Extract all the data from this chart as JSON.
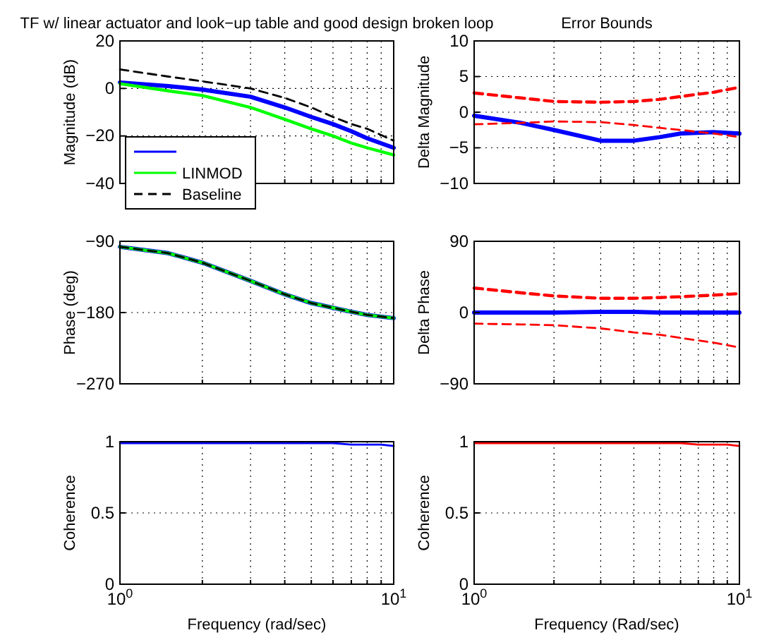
{
  "chart_data": [
    {
      "type": "line",
      "title": "TF w/ linear actuator and look−up table and good design broken loop",
      "ylabel": "Magnitude (dB)",
      "log": "x",
      "grid": true,
      "tick_labels": "y",
      "legend": "bottom left",
      "xlim": [
        1,
        10
      ],
      "ylim": [
        -40,
        20
      ],
      "yticks": [
        -40,
        -20,
        0,
        20
      ],
      "xticks": [
        {
          "value": 1,
          "label": null
        },
        {
          "value": 2,
          "label": null
        },
        {
          "value": 3,
          "label": null
        },
        {
          "value": 4,
          "label": null
        },
        {
          "value": 5,
          "label": null
        },
        {
          "value": 6,
          "label": null
        },
        {
          "value": 7,
          "label": null
        },
        {
          "value": 8,
          "label": null
        },
        {
          "value": 9,
          "label": null
        },
        {
          "value": 10,
          "label": null
        }
      ],
      "x": [
        1,
        1.5,
        2,
        3,
        4,
        5,
        6,
        7,
        8,
        10
      ],
      "series": [
        {
          "color": "#0000ff",
          "values": [
            2.5,
            1,
            -0.5,
            -3.5,
            -8,
            -12,
            -15,
            -18,
            -21,
            -25
          ]
        },
        {
          "name": "LINMOD",
          "color": "#00ff00",
          "values": [
            2,
            -1,
            -3,
            -8,
            -13,
            -17,
            -20,
            -23,
            -25,
            -28
          ]
        },
        {
          "name": "Baseline",
          "color": "#000000",
          "line_style": "dashed",
          "values": [
            8,
            5,
            3,
            0,
            -4,
            -8,
            -12,
            -15,
            -17,
            -22
          ]
        }
      ]
    },
    {
      "type": "line",
      "title": "Error Bounds",
      "ylabel": "Delta Magnitude",
      "log": "x",
      "grid": true,
      "tick_labels": "y",
      "xlim": [
        1,
        10
      ],
      "ylim": [
        -10,
        10
      ],
      "yticks": [
        -10,
        -5,
        0,
        5,
        10
      ],
      "xticks": [
        {
          "value": 1,
          "label": null
        },
        {
          "value": 2,
          "label": null
        },
        {
          "value": 3,
          "label": null
        },
        {
          "value": 4,
          "label": null
        },
        {
          "value": 5,
          "label": null
        },
        {
          "value": 6,
          "label": null
        },
        {
          "value": 7,
          "label": null
        },
        {
          "value": 8,
          "label": null
        },
        {
          "value": 9,
          "label": null
        },
        {
          "value": 10,
          "label": null
        }
      ],
      "x": [
        1,
        1.5,
        2,
        3,
        4,
        5,
        6,
        8,
        10
      ],
      "series": [
        {
          "color": "#0000ff",
          "values": [
            -0.5,
            -1.5,
            -2.5,
            -4,
            -4,
            -3.5,
            -3,
            -2.8,
            -3
          ]
        },
        {
          "color": "#ff0000",
          "line_style": "dashed",
          "values": [
            2.7,
            2,
            1.5,
            1.4,
            1.5,
            1.8,
            2.2,
            2.8,
            3.5
          ]
        },
        {
          "color": "#ff0000",
          "line_style": "dashed",
          "values": [
            -1.7,
            -1.5,
            -1.3,
            -1.4,
            -1.8,
            -2.2,
            -2.5,
            -3,
            -3.5
          ]
        }
      ]
    },
    {
      "type": "line",
      "ylabel": "Phase (deg)",
      "log": "x",
      "grid": true,
      "tick_labels": "y",
      "xlim": [
        1,
        10
      ],
      "ylim": [
        -270,
        -90
      ],
      "yticks": [
        -270,
        -180,
        -90
      ],
      "xticks": [
        {
          "value": 1,
          "label": null
        },
        {
          "value": 2,
          "label": null
        },
        {
          "value": 3,
          "label": null
        },
        {
          "value": 4,
          "label": null
        },
        {
          "value": 5,
          "label": null
        },
        {
          "value": 6,
          "label": null
        },
        {
          "value": 7,
          "label": null
        },
        {
          "value": 8,
          "label": null
        },
        {
          "value": 9,
          "label": null
        },
        {
          "value": 10,
          "label": null
        }
      ],
      "x": [
        1,
        1.5,
        2,
        3,
        4,
        5,
        6,
        7,
        8,
        10
      ],
      "series": [
        {
          "color": "#0000ff",
          "values": [
            -97,
            -105,
            -117,
            -140,
            -157,
            -168,
            -174,
            -179,
            -183,
            -187
          ]
        },
        {
          "color": "#00ff00",
          "values": [
            -97,
            -105,
            -117,
            -140,
            -157,
            -168,
            -174,
            -179,
            -183,
            -187
          ]
        },
        {
          "color": "#000000",
          "line_style": "dashed",
          "values": [
            -97,
            -105,
            -117,
            -140,
            -157,
            -168,
            -174,
            -179,
            -183,
            -187
          ]
        }
      ]
    },
    {
      "type": "line",
      "ylabel": "Delta Phase",
      "log": "x",
      "grid": true,
      "tick_labels": "y",
      "xlim": [
        1,
        10
      ],
      "ylim": [
        -90,
        90
      ],
      "yticks": [
        -90,
        0,
        90
      ],
      "xticks": [
        {
          "value": 1,
          "label": null
        },
        {
          "value": 2,
          "label": null
        },
        {
          "value": 3,
          "label": null
        },
        {
          "value": 4,
          "label": null
        },
        {
          "value": 5,
          "label": null
        },
        {
          "value": 6,
          "label": null
        },
        {
          "value": 7,
          "label": null
        },
        {
          "value": 8,
          "label": null
        },
        {
          "value": 9,
          "label": null
        },
        {
          "value": 10,
          "label": null
        }
      ],
      "x": [
        1,
        1.5,
        2,
        3,
        4,
        5,
        6,
        8,
        10
      ],
      "series": [
        {
          "color": "#0000ff",
          "values": [
            0,
            0,
            0,
            1,
            1,
            0,
            0,
            0,
            0
          ]
        },
        {
          "color": "#ff0000",
          "line_style": "dashed",
          "values": [
            31,
            25,
            21,
            18,
            18,
            19,
            20,
            22,
            24
          ]
        },
        {
          "color": "#ff0000",
          "line_style": "dashed",
          "values": [
            -14,
            -15,
            -16,
            -20,
            -25,
            -28,
            -32,
            -38,
            -44
          ]
        }
      ]
    },
    {
      "type": "line",
      "ylabel": "Coherence",
      "xlabel": "Frequency (rad/sec)",
      "log": "x",
      "grid": true,
      "xlim": [
        1,
        10
      ],
      "ylim": [
        0,
        1
      ],
      "yticks": [
        0,
        0.5,
        1
      ],
      "xticks": [
        {
          "value": 1,
          "label": "10$^{0}$"
        },
        {
          "value": 2,
          "label": null
        },
        {
          "value": 3,
          "label": null
        },
        {
          "value": 4,
          "label": null
        },
        {
          "value": 5,
          "label": null
        },
        {
          "value": 6,
          "label": null
        },
        {
          "value": 7,
          "label": null
        },
        {
          "value": 8,
          "label": null
        },
        {
          "value": 9,
          "label": null
        },
        {
          "value": 10,
          "label": "10$^{1}$"
        }
      ],
      "x": [
        1,
        2,
        3,
        4,
        5,
        6,
        7,
        8,
        9,
        10
      ],
      "series": [
        {
          "color": "#0000ff",
          "values": [
            0.99,
            0.99,
            0.99,
            0.99,
            0.99,
            0.99,
            0.98,
            0.98,
            0.98,
            0.97
          ]
        }
      ]
    },
    {
      "type": "line",
      "ylabel": "Coherence",
      "xlabel": "Frequency (Rad/sec)",
      "log": "x",
      "grid": true,
      "xlim": [
        1,
        10
      ],
      "ylim": [
        0,
        1
      ],
      "yticks": [
        0,
        0.5,
        1
      ],
      "xticks": [
        {
          "value": 1,
          "label": "10$^{0}$"
        },
        {
          "value": 2,
          "label": null
        },
        {
          "value": 3,
          "label": null
        },
        {
          "value": 4,
          "label": null
        },
        {
          "value": 5,
          "label": null
        },
        {
          "value": 6,
          "label": null
        },
        {
          "value": 7,
          "label": null
        },
        {
          "value": 8,
          "label": null
        },
        {
          "value": 9,
          "label": null
        },
        {
          "value": 10,
          "label": "10$^{1}$"
        }
      ],
      "x": [
        1,
        2,
        3,
        4,
        5,
        6,
        7,
        8,
        9,
        10
      ],
      "series": [
        {
          "color": "#ff0000",
          "values": [
            0.99,
            0.99,
            0.99,
            0.99,
            0.99,
            0.99,
            0.98,
            0.98,
            0.98,
            0.97
          ]
        }
      ]
    }
  ]
}
